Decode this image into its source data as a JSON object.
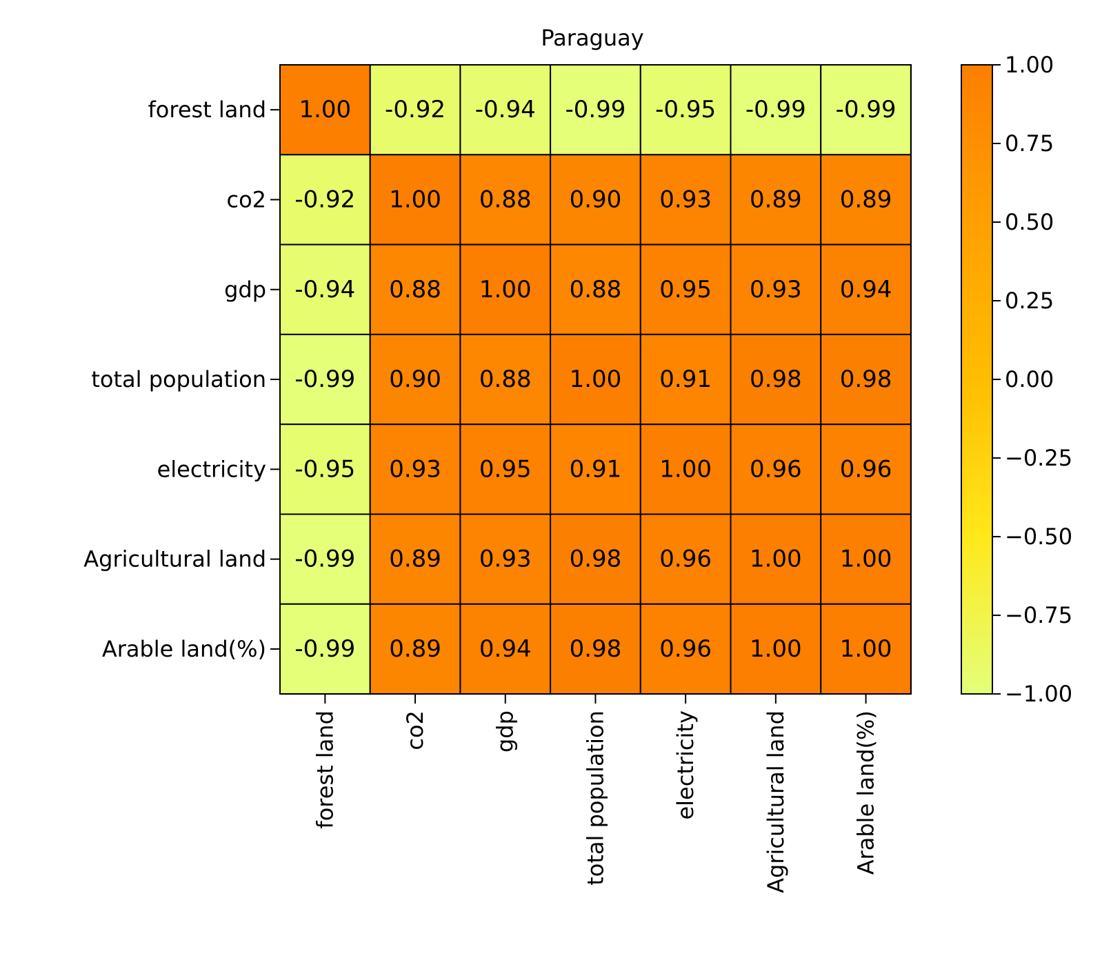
{
  "chart_data": {
    "type": "heatmap",
    "title": "Paraguay",
    "row_labels": [
      "forest land",
      "co2",
      "gdp",
      "total population",
      "electricity",
      "Agricultural land",
      "Arable land(%)"
    ],
    "col_labels": [
      "forest land",
      "co2",
      "gdp",
      "total population",
      "electricity",
      "Agricultural land",
      "Arable land(%)"
    ],
    "values": [
      [
        1.0,
        -0.92,
        -0.94,
        -0.99,
        -0.95,
        -0.99,
        -0.99
      ],
      [
        -0.92,
        1.0,
        0.88,
        0.9,
        0.93,
        0.89,
        0.89
      ],
      [
        -0.94,
        0.88,
        1.0,
        0.88,
        0.95,
        0.93,
        0.94
      ],
      [
        -0.99,
        0.9,
        0.88,
        1.0,
        0.91,
        0.98,
        0.98
      ],
      [
        -0.95,
        0.93,
        0.95,
        0.91,
        1.0,
        0.96,
        0.96
      ],
      [
        -0.99,
        0.89,
        0.93,
        0.98,
        0.96,
        1.0,
        1.0
      ],
      [
        -0.99,
        0.89,
        0.94,
        0.98,
        0.96,
        1.0,
        1.0
      ]
    ],
    "value_format": "2 decimals",
    "colorbar": {
      "range": [
        -1.0,
        1.0
      ],
      "ticks": [
        1.0,
        0.75,
        0.5,
        0.25,
        0.0,
        -0.25,
        -0.5,
        -0.75,
        -1.0
      ],
      "tick_labels": [
        "1.00",
        "0.75",
        "0.50",
        "0.25",
        "0.00",
        "−0.25",
        "−0.50",
        "−0.75",
        "−1.00"
      ],
      "colormap": "Wistia",
      "colors": [
        "#e4ff7a",
        "#ffe81a",
        "#ffbd00",
        "#ffa000",
        "#fc7f00"
      ]
    }
  }
}
